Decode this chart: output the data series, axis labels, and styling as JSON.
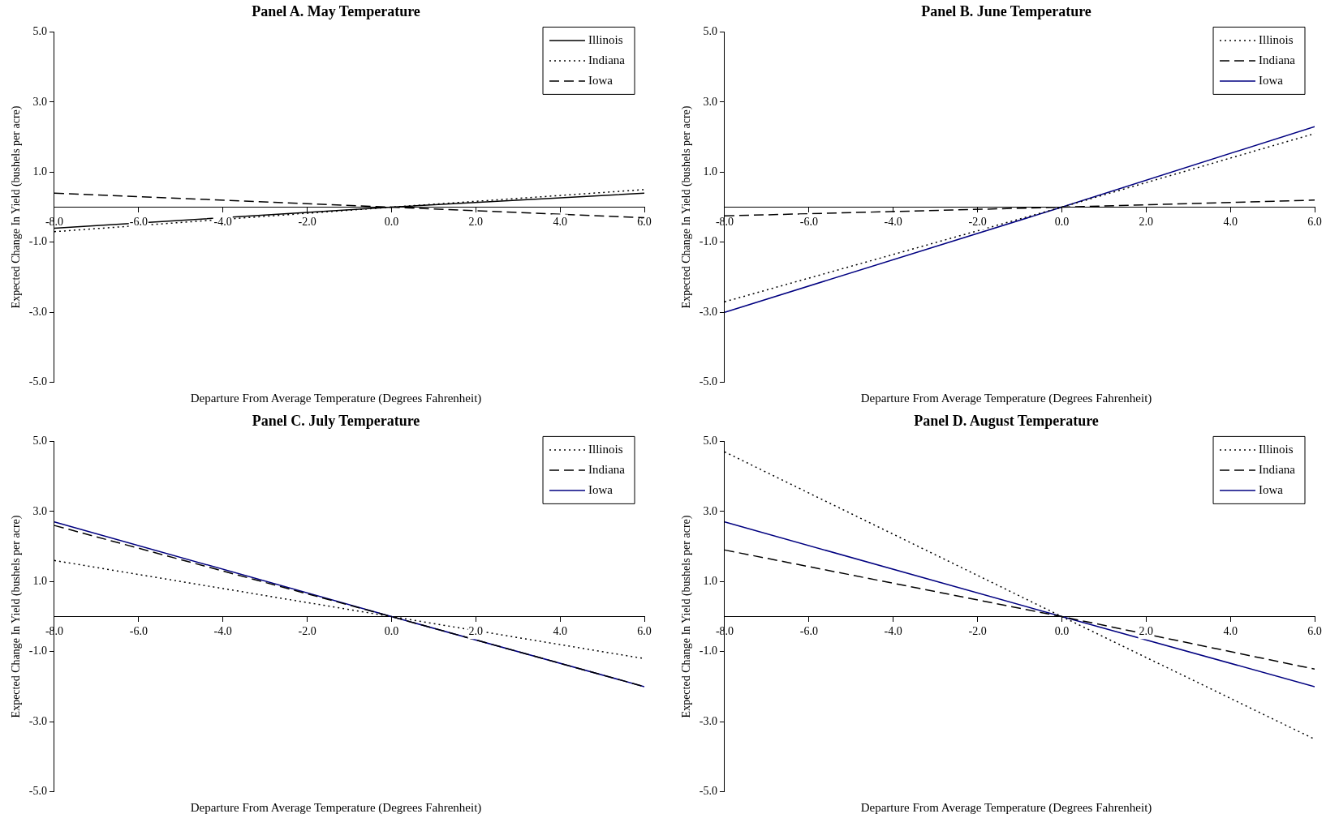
{
  "chart_data": [
    {
      "type": "line",
      "title": "Panel A.  May Temperature",
      "xlabel": "Departure From Average Temperature (Degrees Fahrenheit)",
      "ylabel": "Expected Change In Yield (bushels per acre)",
      "xlim": [
        -8,
        6
      ],
      "xticks": [
        {
          "value": -8,
          "label": "-8.0"
        },
        {
          "value": -6,
          "label": "-6.0"
        },
        {
          "value": -4,
          "label": "-4.0"
        },
        {
          "value": -2,
          "label": "-2.0"
        },
        {
          "value": 0,
          "label": "0.0"
        },
        {
          "value": 2,
          "label": "2.0"
        },
        {
          "value": 4,
          "label": "4.0"
        },
        {
          "value": 6,
          "label": "6.0"
        }
      ],
      "ylim": [
        -5,
        5
      ],
      "yticks": [
        {
          "value": -5,
          "label": "-5.0"
        },
        {
          "value": -3,
          "label": "-3.0"
        },
        {
          "value": -1,
          "label": "-1.0"
        },
        {
          "value": 1,
          "label": "1.0"
        },
        {
          "value": 3,
          "label": "3.0"
        },
        {
          "value": 5,
          "label": "5.0"
        }
      ],
      "grid": false,
      "legend": "top right",
      "marker": "none",
      "series": [
        {
          "name": "Illinois",
          "color": "#000000",
          "line_style": "solid",
          "x": [
            -8,
            0,
            6
          ],
          "values": [
            -0.6,
            0,
            0.4
          ]
        },
        {
          "name": "Indiana",
          "color": "#000000",
          "line_style": "dotted",
          "x": [
            -8,
            0,
            6
          ],
          "values": [
            -0.7,
            0,
            0.5
          ]
        },
        {
          "name": "Iowa",
          "color": "#000000",
          "line_style": "dashed",
          "x": [
            -8,
            0,
            6
          ],
          "values": [
            0.4,
            0,
            -0.3
          ]
        }
      ]
    },
    {
      "type": "line",
      "title": "Panel B.  June Temperature",
      "xlabel": "Departure From Average Temperature (Degrees Fahrenheit)",
      "ylabel": "Expected Change In Yield (bushels per acre)",
      "xlim": [
        -8,
        6
      ],
      "xticks": [
        {
          "value": -8,
          "label": "-8.0"
        },
        {
          "value": -6,
          "label": "-6.0"
        },
        {
          "value": -4,
          "label": "-4.0"
        },
        {
          "value": -2,
          "label": "-2.0"
        },
        {
          "value": 0,
          "label": "0.0"
        },
        {
          "value": 2,
          "label": "2.0"
        },
        {
          "value": 4,
          "label": "4.0"
        },
        {
          "value": 6,
          "label": "6.0"
        }
      ],
      "ylim": [
        -5,
        5
      ],
      "yticks": [
        {
          "value": -5,
          "label": "-5.0"
        },
        {
          "value": -3,
          "label": "-3.0"
        },
        {
          "value": -1,
          "label": "-1.0"
        },
        {
          "value": 1,
          "label": "1.0"
        },
        {
          "value": 3,
          "label": "3.0"
        },
        {
          "value": 5,
          "label": "5.0"
        }
      ],
      "grid": false,
      "legend": "top right",
      "marker": "none",
      "series": [
        {
          "name": "Illinois",
          "color": "#000000",
          "line_style": "dotted",
          "x": [
            -8,
            0,
            6
          ],
          "values": [
            -2.7,
            0,
            2.1
          ]
        },
        {
          "name": "Indiana",
          "color": "#000000",
          "line_style": "dashed",
          "x": [
            -8,
            0,
            6
          ],
          "values": [
            -0.25,
            0,
            0.2
          ]
        },
        {
          "name": "Iowa",
          "color": "#000080",
          "line_style": "solid",
          "x": [
            -8,
            0,
            6
          ],
          "values": [
            -3.0,
            0,
            2.3
          ]
        }
      ]
    },
    {
      "type": "line",
      "title": "Panel C.  July Temperature",
      "xlabel": "Departure From Average Temperature (Degrees Fahrenheit)",
      "ylabel": "Expected Change In Yield (bushels per acre)",
      "xlim": [
        -8,
        6
      ],
      "xticks": [
        {
          "value": -8,
          "label": "-8.0"
        },
        {
          "value": -6,
          "label": "-6.0"
        },
        {
          "value": -4,
          "label": "-4.0"
        },
        {
          "value": -2,
          "label": "-2.0"
        },
        {
          "value": 0,
          "label": "0.0"
        },
        {
          "value": 2,
          "label": "2.0"
        },
        {
          "value": 4,
          "label": "4.0"
        },
        {
          "value": 6,
          "label": "6.0"
        }
      ],
      "ylim": [
        -5,
        5
      ],
      "yticks": [
        {
          "value": -5,
          "label": "-5.0"
        },
        {
          "value": -3,
          "label": "-3.0"
        },
        {
          "value": -1,
          "label": "-1.0"
        },
        {
          "value": 1,
          "label": "1.0"
        },
        {
          "value": 3,
          "label": "3.0"
        },
        {
          "value": 5,
          "label": "5.0"
        }
      ],
      "grid": false,
      "legend": "top right",
      "marker": "none",
      "series": [
        {
          "name": "Illinois",
          "color": "#000000",
          "line_style": "dotted",
          "x": [
            -8,
            0,
            6
          ],
          "values": [
            1.6,
            0,
            -1.2
          ]
        },
        {
          "name": "Indiana",
          "color": "#000000",
          "line_style": "dashed",
          "x": [
            -8,
            0,
            6
          ],
          "values": [
            2.6,
            0,
            -2.0
          ]
        },
        {
          "name": "Iowa",
          "color": "#000080",
          "line_style": "solid",
          "x": [
            -8,
            0,
            6
          ],
          "values": [
            2.7,
            0,
            -2.0
          ]
        }
      ]
    },
    {
      "type": "line",
      "title": "Panel D.  August Temperature",
      "xlabel": "Departure From Average Temperature (Degrees Fahrenheit)",
      "ylabel": "Expected Change In Yield (bushels per acre)",
      "xlim": [
        -8,
        6
      ],
      "xticks": [
        {
          "value": -8,
          "label": "-8.0"
        },
        {
          "value": -6,
          "label": "-6.0"
        },
        {
          "value": -4,
          "label": "-4.0"
        },
        {
          "value": -2,
          "label": "-2.0"
        },
        {
          "value": 0,
          "label": "0.0"
        },
        {
          "value": 2,
          "label": "2.0"
        },
        {
          "value": 4,
          "label": "4.0"
        },
        {
          "value": 6,
          "label": "6.0"
        }
      ],
      "ylim": [
        -5,
        5
      ],
      "yticks": [
        {
          "value": -5,
          "label": "-5.0"
        },
        {
          "value": -3,
          "label": "-3.0"
        },
        {
          "value": -1,
          "label": "-1.0"
        },
        {
          "value": 1,
          "label": "1.0"
        },
        {
          "value": 3,
          "label": "3.0"
        },
        {
          "value": 5,
          "label": "5.0"
        }
      ],
      "grid": false,
      "legend": "top right",
      "marker": "none",
      "series": [
        {
          "name": "Illinois",
          "color": "#000000",
          "line_style": "dotted",
          "x": [
            -8,
            0,
            6
          ],
          "values": [
            4.7,
            0,
            -3.5
          ]
        },
        {
          "name": "Indiana",
          "color": "#000000",
          "line_style": "dashed",
          "x": [
            -8,
            0,
            6
          ],
          "values": [
            1.9,
            0,
            -1.5
          ]
        },
        {
          "name": "Iowa",
          "color": "#000080",
          "line_style": "solid",
          "x": [
            -8,
            0,
            6
          ],
          "values": [
            2.7,
            0,
            -2.0
          ]
        }
      ]
    }
  ]
}
